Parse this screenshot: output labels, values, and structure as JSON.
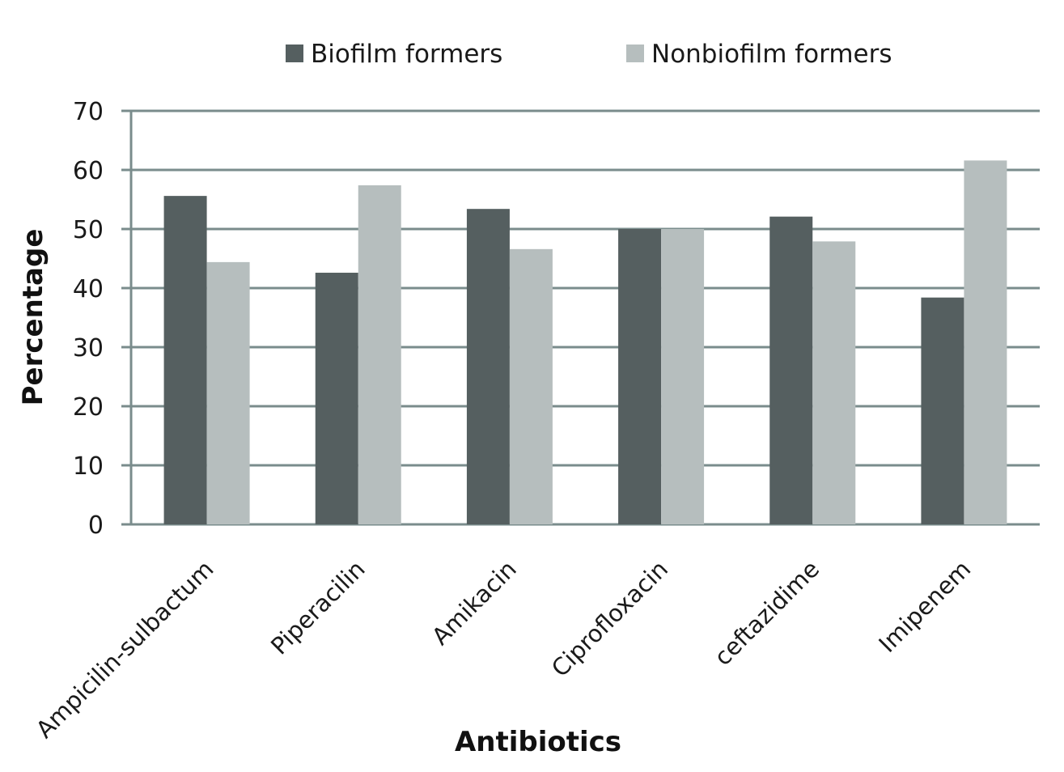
{
  "chart_data": {
    "type": "bar",
    "title": "",
    "xlabel": "Antibiotics",
    "ylabel": "Percentage",
    "categories": [
      "Ampicilin-sulbactum",
      "Piperacilin",
      "Amikacin",
      "Ciprofloxacin",
      "ceftazidime",
      "Imipenem"
    ],
    "series": [
      {
        "name": "Biofilm formers",
        "color": "#555f60",
        "values": [
          55.6,
          42.6,
          53.4,
          50.0,
          52.1,
          38.4
        ]
      },
      {
        "name": "Nonbiofilm formers",
        "color": "#b6bebe",
        "values": [
          44.4,
          57.4,
          46.6,
          50.0,
          47.9,
          61.6
        ]
      }
    ],
    "ylim": [
      0,
      70
    ],
    "yticks": [
      0,
      10,
      20,
      30,
      40,
      50,
      60,
      70
    ],
    "grid": true,
    "legend_position": "top-center"
  }
}
